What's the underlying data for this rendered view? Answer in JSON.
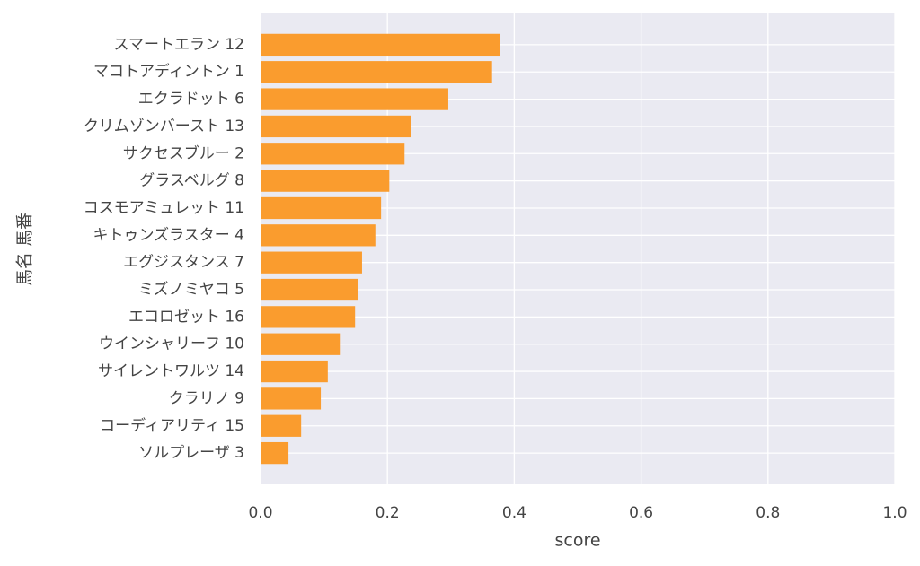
{
  "chart_data": {
    "type": "barh",
    "xlabel": "score",
    "ylabel": "馬名 馬番",
    "categories": [
      "スマートエラン 12",
      "マコトアディントン 1",
      "エクラドット 6",
      "クリムゾンバースト 13",
      "サクセスブルー 2",
      "グラスベルグ 8",
      "コスモアミュレット 11",
      "キトゥンズラスター 4",
      "エグジスタンス 7",
      "ミズノミヤコ 5",
      "エコロゼット 16",
      "ウインシャリーフ 10",
      "サイレントワルツ 14",
      "クラリノ 9",
      "コーディアリティ 15",
      "ソルプレーザ 3"
    ],
    "values": [
      0.378,
      0.365,
      0.296,
      0.237,
      0.227,
      0.203,
      0.19,
      0.181,
      0.16,
      0.153,
      0.149,
      0.125,
      0.106,
      0.095,
      0.064,
      0.044
    ],
    "color": "#fa9c2e",
    "xlim": [
      0,
      1
    ],
    "xticks": [
      {
        "value": 0,
        "label": "0.0"
      },
      {
        "value": 0.2,
        "label": "0.2"
      },
      {
        "value": 0.4,
        "label": "0.4"
      },
      {
        "value": 0.6,
        "label": "0.6"
      },
      {
        "value": 0.8,
        "label": "0.8"
      },
      {
        "value": 1,
        "label": "1.0"
      }
    ],
    "grid": true
  }
}
